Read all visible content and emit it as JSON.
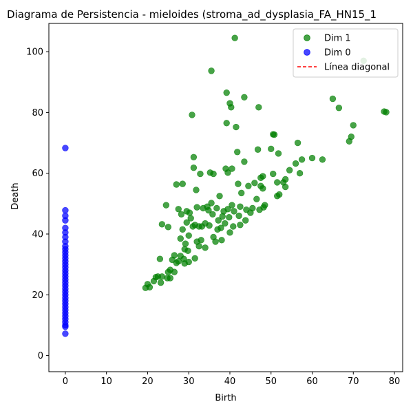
{
  "chart_data": {
    "type": "scatter",
    "title": "Diagrama de Persistencia - mieloides (stroma_ad_dysplasia_FA_HN15_1",
    "xlabel": "Birth",
    "ylabel": "Death",
    "xlim": [
      -4,
      82
    ],
    "ylim": [
      -5.3,
      109.3
    ],
    "xticks": [
      0,
      10,
      20,
      30,
      40,
      50,
      60,
      70,
      80
    ],
    "yticks": [
      0,
      20,
      40,
      60,
      80,
      100
    ],
    "grid": false,
    "legend_position": "top-right",
    "series": [
      {
        "name": "Dim 1",
        "color": "#008000",
        "points": [
          [
            19.5,
            22.3
          ],
          [
            20.0,
            23.5
          ],
          [
            20.5,
            22.5
          ],
          [
            21.5,
            24.5
          ],
          [
            22.0,
            25.8
          ],
          [
            22.5,
            26.0
          ],
          [
            23.0,
            31.8
          ],
          [
            23.2,
            24.0
          ],
          [
            23.5,
            43.2
          ],
          [
            23.5,
            26.0
          ],
          [
            24.5,
            49.5
          ],
          [
            24.8,
            25.5
          ],
          [
            25.0,
            27.5
          ],
          [
            25.0,
            42.3
          ],
          [
            25.5,
            25.5
          ],
          [
            25.5,
            28.2
          ],
          [
            26.0,
            31.5
          ],
          [
            26.5,
            27.5
          ],
          [
            26.5,
            33.0
          ],
          [
            27.0,
            56.3
          ],
          [
            27.0,
            30.5
          ],
          [
            27.5,
            31.0
          ],
          [
            27.5,
            48.2
          ],
          [
            28.0,
            32.8
          ],
          [
            28.0,
            38.5
          ],
          [
            28.2,
            46.5
          ],
          [
            28.5,
            56.5
          ],
          [
            28.5,
            41.5
          ],
          [
            28.8,
            31.8
          ],
          [
            29.0,
            35.0
          ],
          [
            29.0,
            30.3
          ],
          [
            29.2,
            36.8
          ],
          [
            29.5,
            47.5
          ],
          [
            29.5,
            43.8
          ],
          [
            29.8,
            34.5
          ],
          [
            30.0,
            39.5
          ],
          [
            30.0,
            30.8
          ],
          [
            30.2,
            47.0
          ],
          [
            30.5,
            45.2
          ],
          [
            30.8,
            79.2
          ],
          [
            31.0,
            42.5
          ],
          [
            31.2,
            65.3
          ],
          [
            31.2,
            61.8
          ],
          [
            31.5,
            43.0
          ],
          [
            31.5,
            32.0
          ],
          [
            31.8,
            54.5
          ],
          [
            32.0,
            48.8
          ],
          [
            32.0,
            37.5
          ],
          [
            32.5,
            36.0
          ],
          [
            32.5,
            42.5
          ],
          [
            32.8,
            59.8
          ],
          [
            33.0,
            38.0
          ],
          [
            33.2,
            42.5
          ],
          [
            33.5,
            48.5
          ],
          [
            34.0,
            35.5
          ],
          [
            34.0,
            43.5
          ],
          [
            34.5,
            49.0
          ],
          [
            34.8,
            47.8
          ],
          [
            35.0,
            42.8
          ],
          [
            35.2,
            60.2
          ],
          [
            35.5,
            93.7
          ],
          [
            35.5,
            50.2
          ],
          [
            35.8,
            46.5
          ],
          [
            36.0,
            59.8
          ],
          [
            36.0,
            39.0
          ],
          [
            36.5,
            37.5
          ],
          [
            36.8,
            48.5
          ],
          [
            37.0,
            41.5
          ],
          [
            37.2,
            44.5
          ],
          [
            37.5,
            52.5
          ],
          [
            37.8,
            42.0
          ],
          [
            38.0,
            38.0
          ],
          [
            38.2,
            45.8
          ],
          [
            38.5,
            47.5
          ],
          [
            38.8,
            43.5
          ],
          [
            39.0,
            61.5
          ],
          [
            39.2,
            76.5
          ],
          [
            39.2,
            86.5
          ],
          [
            39.5,
            60.2
          ],
          [
            39.5,
            48.2
          ],
          [
            39.8,
            45.5
          ],
          [
            40.0,
            83.0
          ],
          [
            40.0,
            40.5
          ],
          [
            40.3,
            81.7
          ],
          [
            40.5,
            61.5
          ],
          [
            40.5,
            49.5
          ],
          [
            40.8,
            42.5
          ],
          [
            41.0,
            47.5
          ],
          [
            41.2,
            104.5
          ],
          [
            41.5,
            75.2
          ],
          [
            41.8,
            67.0
          ],
          [
            42.0,
            56.5
          ],
          [
            42.2,
            46.0
          ],
          [
            42.5,
            49.0
          ],
          [
            42.5,
            43.0
          ],
          [
            42.8,
            53.5
          ],
          [
            43.5,
            85.0
          ],
          [
            43.5,
            63.8
          ],
          [
            43.8,
            44.5
          ],
          [
            44.0,
            48.0
          ],
          [
            44.5,
            55.8
          ],
          [
            45.0,
            47.0
          ],
          [
            45.5,
            48.5
          ],
          [
            46.0,
            56.8
          ],
          [
            46.5,
            51.5
          ],
          [
            46.8,
            67.8
          ],
          [
            47.0,
            81.7
          ],
          [
            47.2,
            48.0
          ],
          [
            47.5,
            58.5
          ],
          [
            47.5,
            55.8
          ],
          [
            48.0,
            55.0
          ],
          [
            48.0,
            59.0
          ],
          [
            48.2,
            48.8
          ],
          [
            48.5,
            49.5
          ],
          [
            50.0,
            68.0
          ],
          [
            50.5,
            72.8
          ],
          [
            50.8,
            72.7
          ],
          [
            50.5,
            59.8
          ],
          [
            51.5,
            57.0
          ],
          [
            51.5,
            52.5
          ],
          [
            51.8,
            66.5
          ],
          [
            52.0,
            53.0
          ],
          [
            53.0,
            57.0
          ],
          [
            53.5,
            58.0
          ],
          [
            53.5,
            55.5
          ],
          [
            54.5,
            61.0
          ],
          [
            56.0,
            63.2
          ],
          [
            56.5,
            70.0
          ],
          [
            57.0,
            60.0
          ],
          [
            57.5,
            64.5
          ],
          [
            60.0,
            65.0
          ],
          [
            62.5,
            64.5
          ],
          [
            65.0,
            84.5
          ],
          [
            66.5,
            81.5
          ],
          [
            69.0,
            70.5
          ],
          [
            69.5,
            72.0
          ],
          [
            70.0,
            75.8
          ],
          [
            77.5,
            80.3
          ],
          [
            78.0,
            80.1
          ],
          [
            72.5,
            97.0
          ]
        ]
      },
      {
        "name": "Dim 0",
        "color": "#0000ff",
        "points": [
          [
            0,
            68.3
          ],
          [
            0,
            47.8
          ],
          [
            0,
            46.0
          ],
          [
            0,
            44.5
          ],
          [
            0,
            42.0
          ],
          [
            0,
            40.5
          ],
          [
            0,
            39.0
          ],
          [
            0,
            37.5
          ],
          [
            0,
            36.0
          ],
          [
            0,
            35.0
          ],
          [
            0,
            34.0
          ],
          [
            0,
            33.0
          ],
          [
            0,
            32.0
          ],
          [
            0,
            31.0
          ],
          [
            0,
            30.0
          ],
          [
            0,
            29.0
          ],
          [
            0,
            28.0
          ],
          [
            0,
            27.0
          ],
          [
            0,
            26.0
          ],
          [
            0,
            25.0
          ],
          [
            0,
            24.0
          ],
          [
            0,
            23.0
          ],
          [
            0,
            22.0
          ],
          [
            0,
            21.0
          ],
          [
            0,
            20.0
          ],
          [
            0,
            19.0
          ],
          [
            0,
            18.0
          ],
          [
            0,
            17.0
          ],
          [
            0,
            16.0
          ],
          [
            0,
            15.0
          ],
          [
            0,
            14.0
          ],
          [
            0,
            13.0
          ],
          [
            0,
            12.0
          ],
          [
            0,
            11.0
          ],
          [
            0,
            10.0
          ],
          [
            0,
            9.5
          ],
          [
            0,
            7.2
          ]
        ]
      }
    ],
    "diagonal": {
      "name": "Línea diagonal",
      "color": "#ff0000",
      "style": "dashed"
    }
  }
}
